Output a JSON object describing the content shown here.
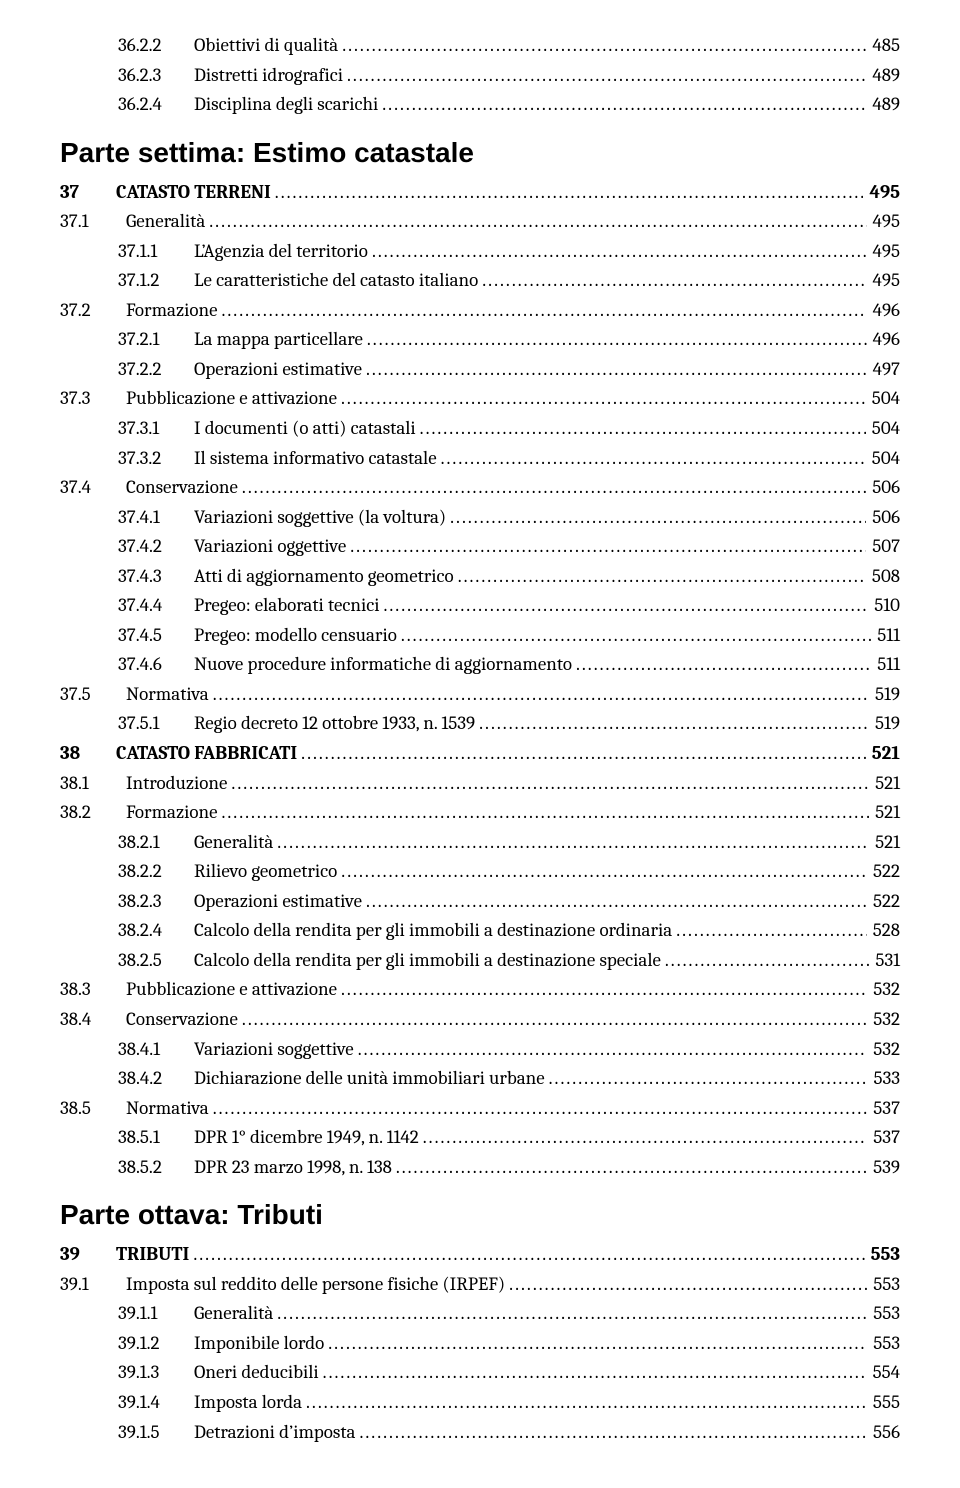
{
  "leader_char": ".",
  "leader_repeat": 200,
  "toc": [
    {
      "kind": "entry",
      "level": 2,
      "num": "36.2.2",
      "title": "Obiettivi di qualità",
      "page": "485"
    },
    {
      "kind": "entry",
      "level": 2,
      "num": "36.2.3",
      "title": "Distretti idrografici",
      "page": "489"
    },
    {
      "kind": "entry",
      "level": 2,
      "num": "36.2.4",
      "title": "Disciplina degli scarichi",
      "page": "489"
    },
    {
      "kind": "part",
      "title": "Parte settima: Estimo catastale"
    },
    {
      "kind": "chapter",
      "level": 0,
      "num": "37",
      "title": "CATASTO TERRENI",
      "page": "495"
    },
    {
      "kind": "entry",
      "level": 1,
      "num": "37.1",
      "title": "Generalità",
      "page": "495"
    },
    {
      "kind": "entry",
      "level": 2,
      "num": "37.1.1",
      "title": "L’Agenzia del territorio",
      "page": "495"
    },
    {
      "kind": "entry",
      "level": 2,
      "num": "37.1.2",
      "title": "Le caratteristiche del catasto italiano",
      "page": "495"
    },
    {
      "kind": "entry",
      "level": 1,
      "num": "37.2",
      "title": "Formazione",
      "page": "496"
    },
    {
      "kind": "entry",
      "level": 2,
      "num": "37.2.1",
      "title": "La mappa particellare",
      "page": "496"
    },
    {
      "kind": "entry",
      "level": 2,
      "num": "37.2.2",
      "title": "Operazioni estimative",
      "page": "497"
    },
    {
      "kind": "entry",
      "level": 1,
      "num": "37.3",
      "title": "Pubblicazione e attivazione",
      "page": "504"
    },
    {
      "kind": "entry",
      "level": 2,
      "num": "37.3.1",
      "title": "I documenti (o atti) catastali",
      "page": "504"
    },
    {
      "kind": "entry",
      "level": 2,
      "num": "37.3.2",
      "title": "Il sistema informativo catastale",
      "page": "504"
    },
    {
      "kind": "entry",
      "level": 1,
      "num": "37.4",
      "title": "Conservazione",
      "page": "506"
    },
    {
      "kind": "entry",
      "level": 2,
      "num": "37.4.1",
      "title": "Variazioni soggettive (la voltura)",
      "page": "506"
    },
    {
      "kind": "entry",
      "level": 2,
      "num": "37.4.2",
      "title": "Variazioni oggettive",
      "page": "507"
    },
    {
      "kind": "entry",
      "level": 2,
      "num": "37.4.3",
      "title": "Atti di aggiornamento geometrico",
      "page": "508"
    },
    {
      "kind": "entry",
      "level": 2,
      "num": "37.4.4",
      "title": "Pregeo: elaborati tecnici",
      "page": "510"
    },
    {
      "kind": "entry",
      "level": 2,
      "num": "37.4.5",
      "title": "Pregeo: modello censuario",
      "page": "511"
    },
    {
      "kind": "entry",
      "level": 2,
      "num": "37.4.6",
      "title": "Nuove procedure informatiche di aggiornamento",
      "page": "511"
    },
    {
      "kind": "entry",
      "level": 1,
      "num": "37.5",
      "title": "Normativa",
      "page": "519"
    },
    {
      "kind": "entry",
      "level": 2,
      "num": "37.5.1",
      "title": "Regio decreto 12 ottobre 1933, n. 1539",
      "page": "519"
    },
    {
      "kind": "chapter",
      "level": 0,
      "num": "38",
      "title": "CATASTO FABBRICATI",
      "page": "521"
    },
    {
      "kind": "entry",
      "level": 1,
      "num": "38.1",
      "title": "Introduzione",
      "page": "521"
    },
    {
      "kind": "entry",
      "level": 1,
      "num": "38.2",
      "title": "Formazione",
      "page": "521"
    },
    {
      "kind": "entry",
      "level": 2,
      "num": "38.2.1",
      "title": "Generalità",
      "page": "521"
    },
    {
      "kind": "entry",
      "level": 2,
      "num": "38.2.2",
      "title": "Rilievo geometrico",
      "page": "522"
    },
    {
      "kind": "entry",
      "level": 2,
      "num": "38.2.3",
      "title": "Operazioni estimative",
      "page": "522"
    },
    {
      "kind": "entry",
      "level": 2,
      "num": "38.2.4",
      "title": "Calcolo della rendita per gli immobili a destinazione ordinaria",
      "page": "528"
    },
    {
      "kind": "entry",
      "level": 2,
      "num": "38.2.5",
      "title": "Calcolo della rendita per gli immobili a destinazione speciale",
      "page": "531"
    },
    {
      "kind": "entry",
      "level": 1,
      "num": "38.3",
      "title": "Pubblicazione e attivazione",
      "page": "532"
    },
    {
      "kind": "entry",
      "level": 1,
      "num": "38.4",
      "title": "Conservazione",
      "page": "532"
    },
    {
      "kind": "entry",
      "level": 2,
      "num": "38.4.1",
      "title": "Variazioni soggettive",
      "page": "532"
    },
    {
      "kind": "entry",
      "level": 2,
      "num": "38.4.2",
      "title": "Dichiarazione delle unità immobiliari urbane",
      "page": "533"
    },
    {
      "kind": "entry",
      "level": 1,
      "num": "38.5",
      "title": "Normativa",
      "page": "537"
    },
    {
      "kind": "entry",
      "level": 2,
      "num": "38.5.1",
      "title": "DPR 1° dicembre 1949, n. 1142",
      "page": "537"
    },
    {
      "kind": "entry",
      "level": 2,
      "num": "38.5.2",
      "title": "DPR 23 marzo 1998, n. 138",
      "page": "539"
    },
    {
      "kind": "part",
      "title": "Parte ottava: Tributi"
    },
    {
      "kind": "chapter",
      "level": 0,
      "num": "39",
      "title": "TRIBUTI",
      "page": "553"
    },
    {
      "kind": "entry",
      "level": 1,
      "num": "39.1",
      "title": "Imposta sul reddito delle persone fisiche (IRPEF)",
      "page": "553"
    },
    {
      "kind": "entry",
      "level": 2,
      "num": "39.1.1",
      "title": "Generalità",
      "page": "553"
    },
    {
      "kind": "entry",
      "level": 2,
      "num": "39.1.2",
      "title": "Imponibile lordo",
      "page": "553"
    },
    {
      "kind": "entry",
      "level": 2,
      "num": "39.1.3",
      "title": "Oneri deducibili",
      "page": "554"
    },
    {
      "kind": "entry",
      "level": 2,
      "num": "39.1.4",
      "title": "Imposta lorda",
      "page": "555"
    },
    {
      "kind": "entry",
      "level": 2,
      "num": "39.1.5",
      "title": "Detrazioni d’imposta",
      "page": "556"
    }
  ]
}
